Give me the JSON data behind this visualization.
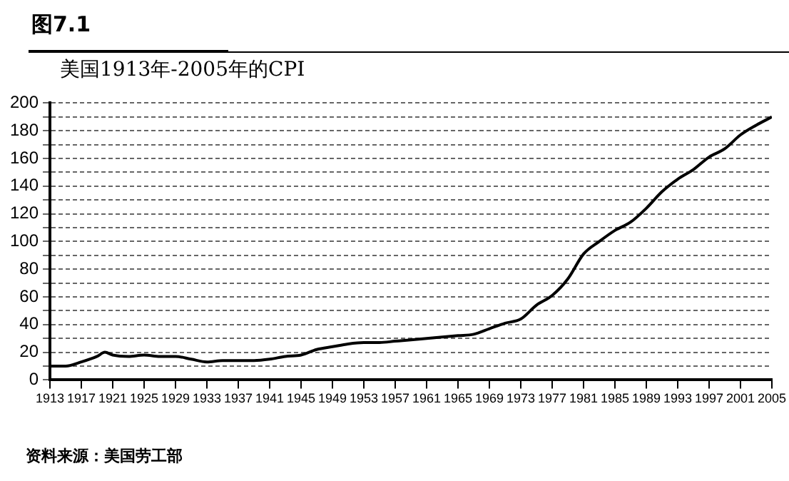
{
  "chart_data": {
    "type": "line",
    "title": "图7.1",
    "subtitle": "美国1913年-2005年的CPI",
    "annotations": [
      "资料来源：美国劳工部"
    ],
    "x": [
      1913,
      1915,
      1917,
      1919,
      1920,
      1921,
      1923,
      1925,
      1927,
      1929,
      1931,
      1933,
      1935,
      1937,
      1939,
      1941,
      1943,
      1945,
      1947,
      1949,
      1951,
      1953,
      1955,
      1957,
      1959,
      1961,
      1963,
      1965,
      1967,
      1969,
      1971,
      1973,
      1975,
      1977,
      1979,
      1981,
      1983,
      1985,
      1987,
      1989,
      1991,
      1993,
      1995,
      1997,
      1999,
      2001,
      2003,
      2005
    ],
    "series": [
      {
        "color": "#000000",
        "values": [
          10,
          10,
          13,
          17,
          20,
          18,
          17,
          18,
          17,
          17,
          15,
          13,
          14,
          14,
          14,
          15,
          17,
          18,
          22,
          24,
          26,
          27,
          27,
          28,
          29,
          30,
          31,
          32,
          33,
          37,
          41,
          44,
          54,
          61,
          73,
          91,
          100,
          108,
          114,
          124,
          136,
          145,
          152,
          161,
          167,
          177,
          184,
          190
        ]
      }
    ],
    "xlim": [
      1913,
      2005
    ],
    "xticks": [
      1913,
      1917,
      1921,
      1925,
      1929,
      1933,
      1937,
      1941,
      1945,
      1949,
      1953,
      1957,
      1961,
      1965,
      1969,
      1973,
      1977,
      1981,
      1985,
      1989,
      1993,
      1997,
      2001,
      2005
    ],
    "ylim": [
      0,
      200
    ],
    "yticks": [
      0,
      {
        "value": 10,
        "label": null
      },
      20,
      {
        "value": 30,
        "label": null
      },
      40,
      {
        "value": 50,
        "label": null
      },
      60,
      {
        "value": 70,
        "label": null
      },
      80,
      {
        "value": 90,
        "label": null
      },
      100,
      {
        "value": 110,
        "label": null
      },
      120,
      {
        "value": 130,
        "label": null
      },
      140,
      {
        "value": 150,
        "label": null
      },
      160,
      {
        "value": 170,
        "label": null
      },
      180,
      {
        "value": 190,
        "label": null
      },
      200
    ],
    "grid": "y",
    "legend": false,
    "marker": "none",
    "line_style": "solid"
  }
}
